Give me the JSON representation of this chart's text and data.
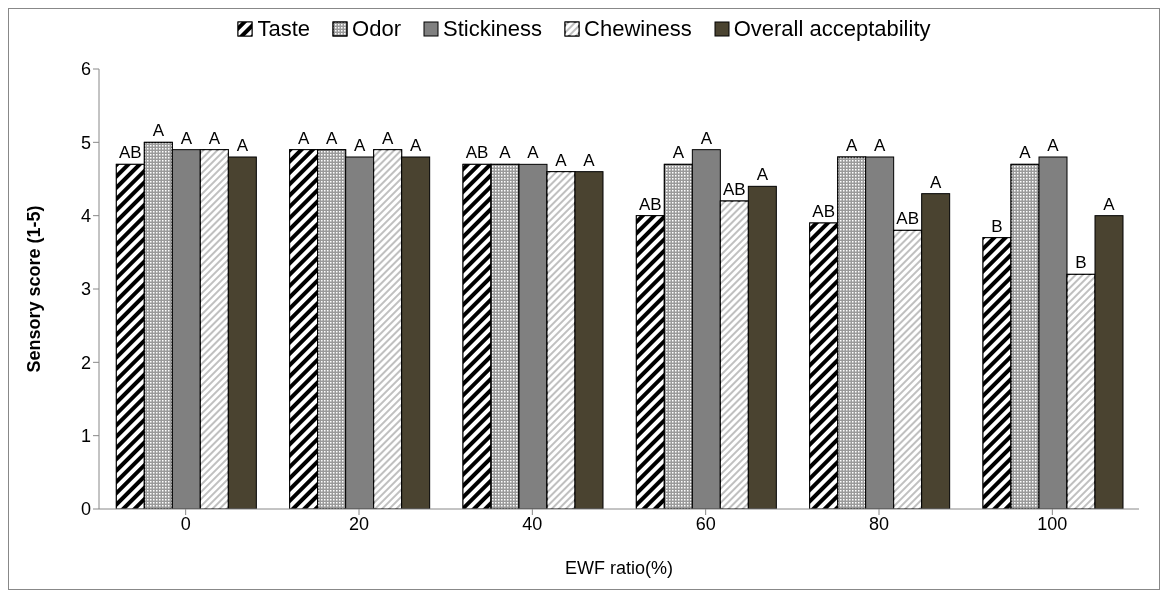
{
  "chart_data": {
    "type": "bar",
    "xlabel": "EWF ratio(%)",
    "ylabel": "Sensory score (1-5)",
    "categories": [
      "0",
      "20",
      "40",
      "60",
      "80",
      "100"
    ],
    "series": [
      {
        "name": "Taste",
        "color": "#000000",
        "values": [
          4.7,
          4.9,
          4.7,
          4.0,
          3.9,
          3.7
        ],
        "value_labels": [
          "AB",
          "A",
          "AB",
          "AB",
          "AB",
          "B"
        ]
      },
      {
        "name": "Odor",
        "color": "#9a9a9a",
        "values": [
          5.0,
          4.9,
          4.7,
          4.7,
          4.8,
          4.7
        ],
        "value_labels": [
          "A",
          "A",
          "A",
          "A",
          "A",
          "A"
        ]
      },
      {
        "name": "Stickiness",
        "color": "#808080",
        "values": [
          4.9,
          4.8,
          4.7,
          4.9,
          4.8,
          4.8
        ],
        "value_labels": [
          "A",
          "A",
          "A",
          "A",
          "A",
          "A"
        ]
      },
      {
        "name": "Chewiness",
        "color": "#c0c0c0",
        "values": [
          4.9,
          4.9,
          4.6,
          4.2,
          3.8,
          3.2
        ],
        "value_labels": [
          "A",
          "A",
          "A",
          "AB",
          "AB",
          "B"
        ]
      },
      {
        "name": "Overall acceptability",
        "color": "#4a4330",
        "values": [
          4.8,
          4.8,
          4.6,
          4.4,
          4.3,
          4.0
        ],
        "value_labels": [
          "A",
          "A",
          "A",
          "A",
          "A",
          "A"
        ]
      }
    ],
    "ylim": [
      0,
      6
    ],
    "yticks": [
      0,
      1,
      2,
      3,
      4,
      5,
      6
    ],
    "legend": "top"
  }
}
